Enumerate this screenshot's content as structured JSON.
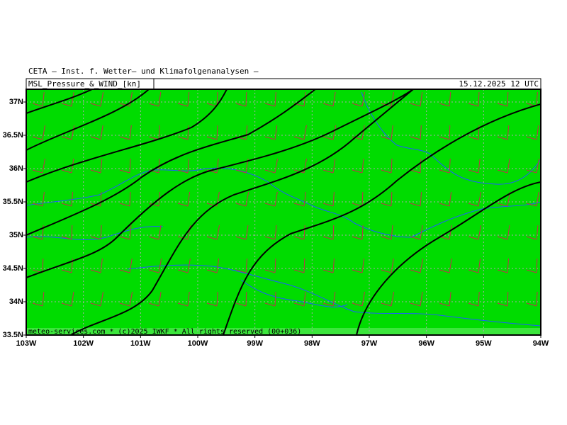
{
  "header": {
    "title": "CETA — Inst. f. Wetter— und Klimafolgenanalysen —",
    "product": "MSL_Pressure_&_WIND_[kn]",
    "datetime": "15.12.2025 12 UTC"
  },
  "map": {
    "footer": "meteo-services.com * (c)2025 IWKF * All rights reserved (00+036)",
    "x_labels": [
      "103W",
      "102W",
      "101W",
      "100W",
      "99W",
      "98W",
      "97W",
      "96W",
      "95W",
      "94W"
    ],
    "y_labels": [
      "37N",
      "36.5N",
      "36N",
      "35.5N",
      "35N",
      "34.5N",
      "34N",
      "33.5N"
    ]
  }
}
